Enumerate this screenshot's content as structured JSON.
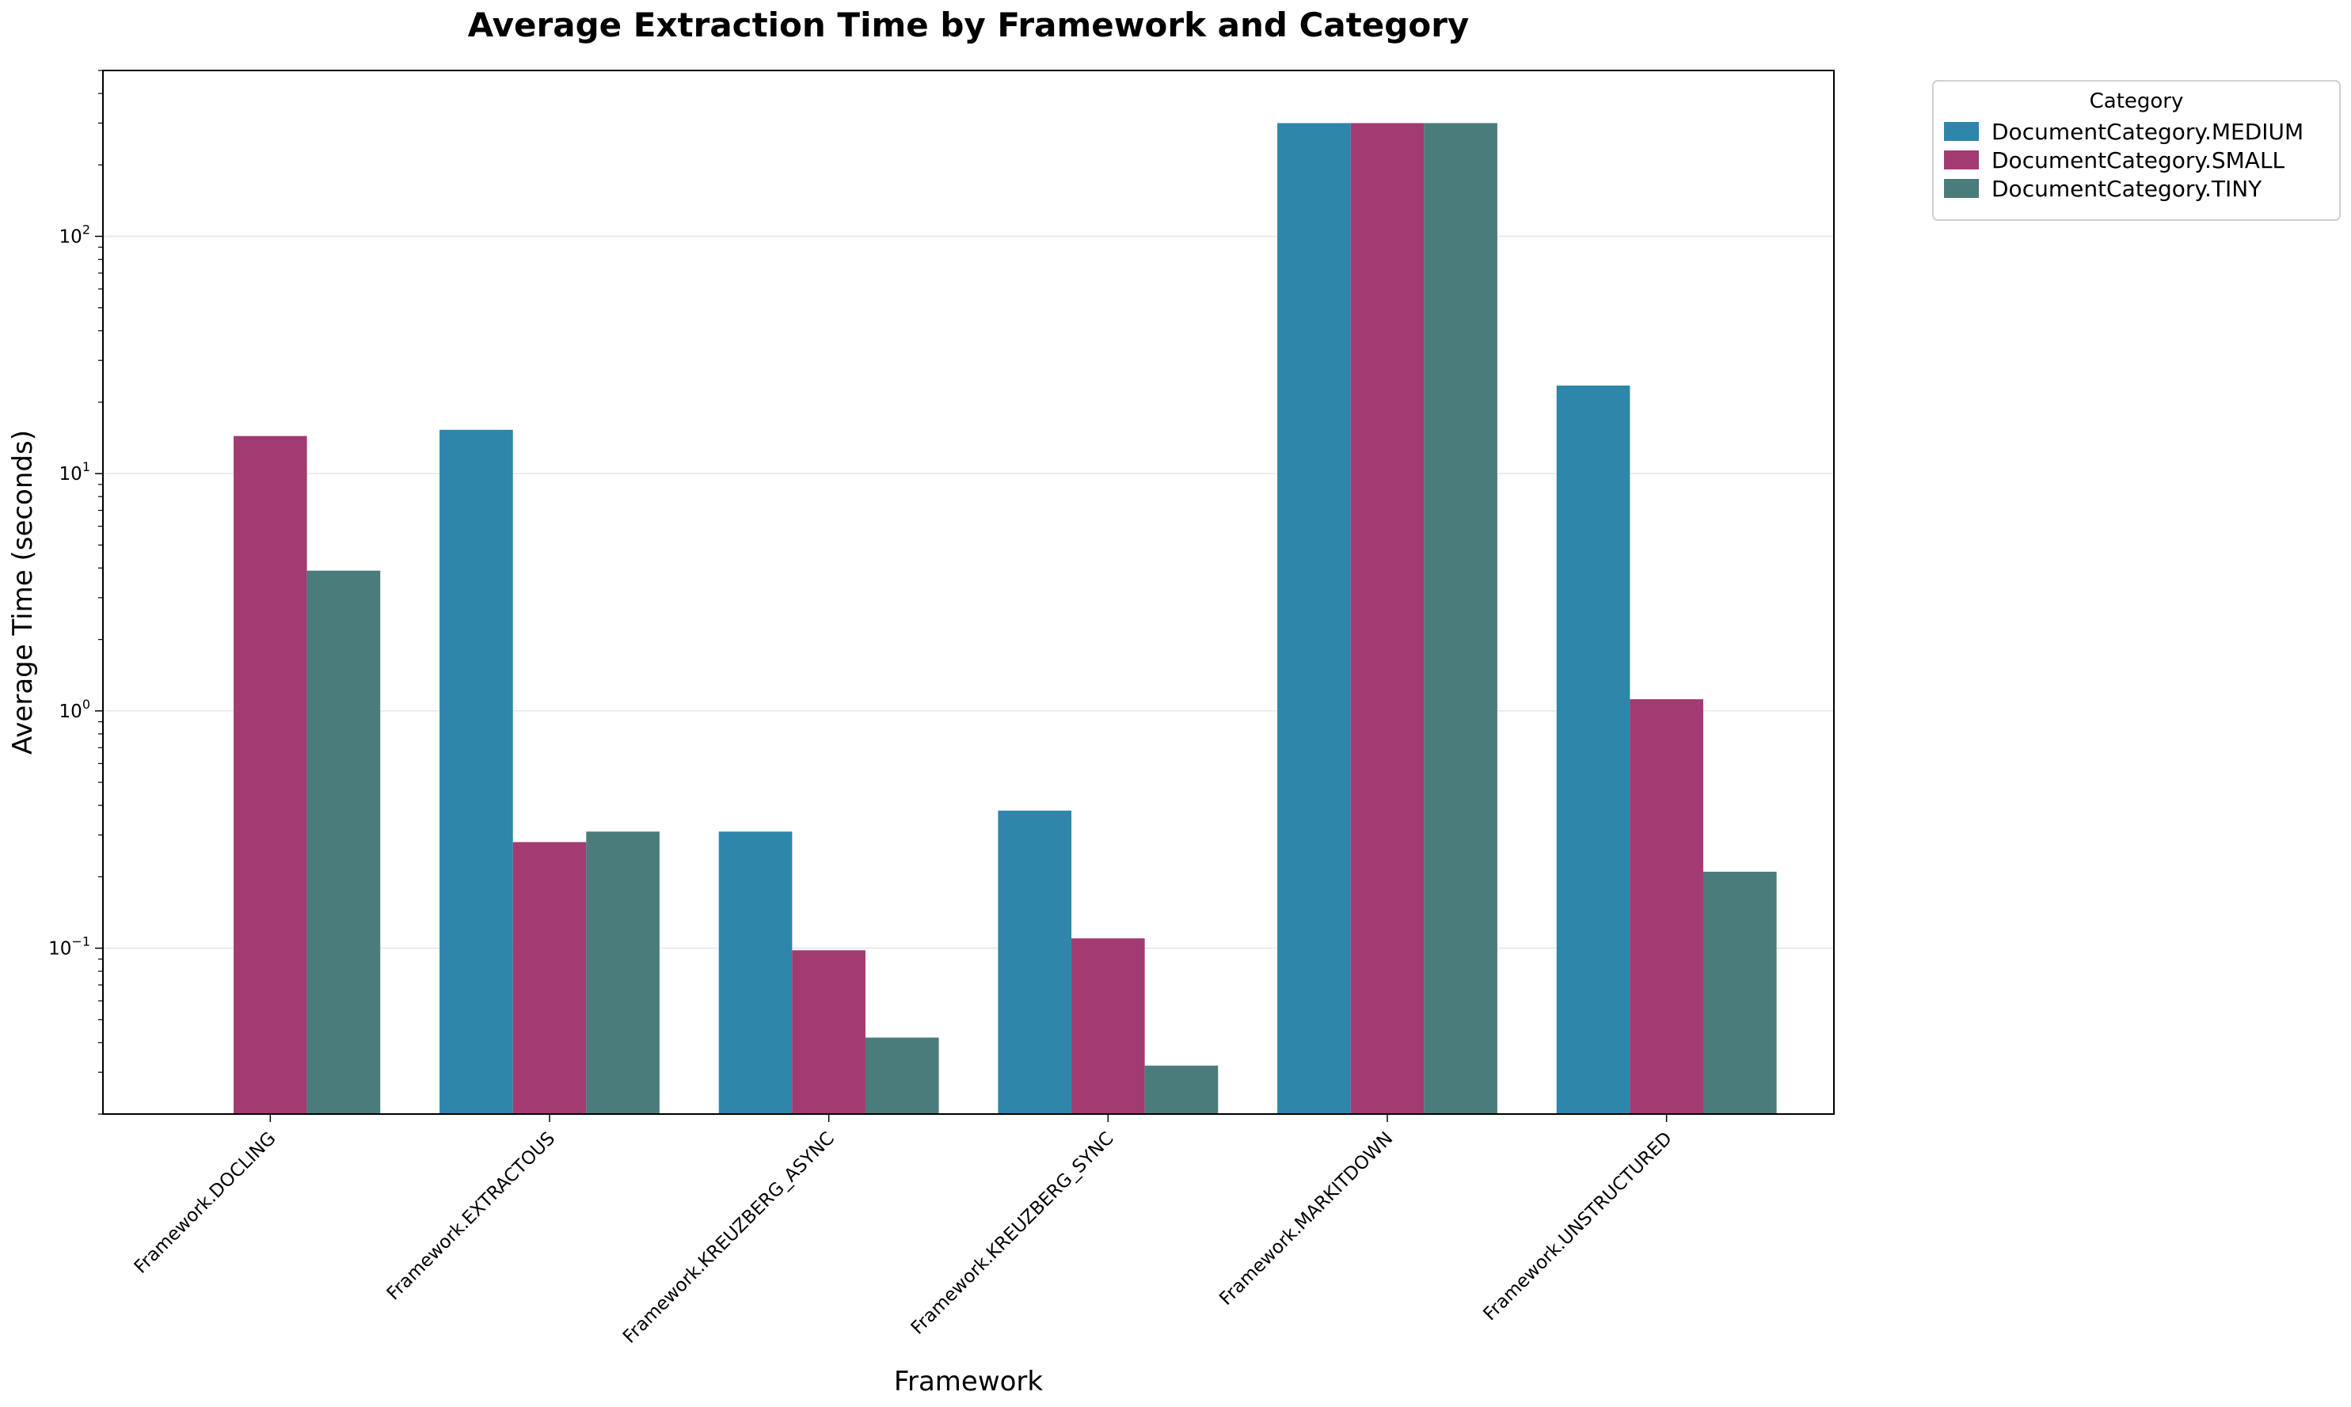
{
  "chart_data": {
    "type": "bar",
    "title": "Average Extraction Time by Framework and Category",
    "xlabel": "Framework",
    "ylabel": "Average Time (seconds)",
    "yscale": "log",
    "ylim": [
      0.02,
      500
    ],
    "y_ticks": [
      {
        "value": 0.1,
        "mantissa": "10",
        "exp": "−1"
      },
      {
        "value": 1,
        "mantissa": "10",
        "exp": "0"
      },
      {
        "value": 10,
        "mantissa": "10",
        "exp": "1"
      },
      {
        "value": 100,
        "mantissa": "10",
        "exp": "2"
      }
    ],
    "grid": "horizontal",
    "categories": [
      "Framework.DOCLING",
      "Framework.EXTRACTOUS",
      "Framework.KREUZBERG_ASYNC",
      "Framework.KREUZBERG_SYNC",
      "Framework.MARKITDOWN",
      "Framework.UNSTRUCTURED"
    ],
    "series": [
      {
        "name": "DocumentCategory.MEDIUM",
        "color": "#2e86ab",
        "values": [
          null,
          15.3,
          0.31,
          0.38,
          300,
          23.5
        ]
      },
      {
        "name": "DocumentCategory.SMALL",
        "color": "#a23b72",
        "values": [
          14.4,
          0.28,
          0.098,
          0.11,
          300,
          1.12
        ]
      },
      {
        "name": "DocumentCategory.TINY",
        "color": "#4a7c7b",
        "values": [
          3.9,
          0.31,
          0.042,
          0.032,
          300,
          0.21
        ]
      }
    ],
    "legend": {
      "title": "Category",
      "placement": "outside-top-right"
    }
  }
}
